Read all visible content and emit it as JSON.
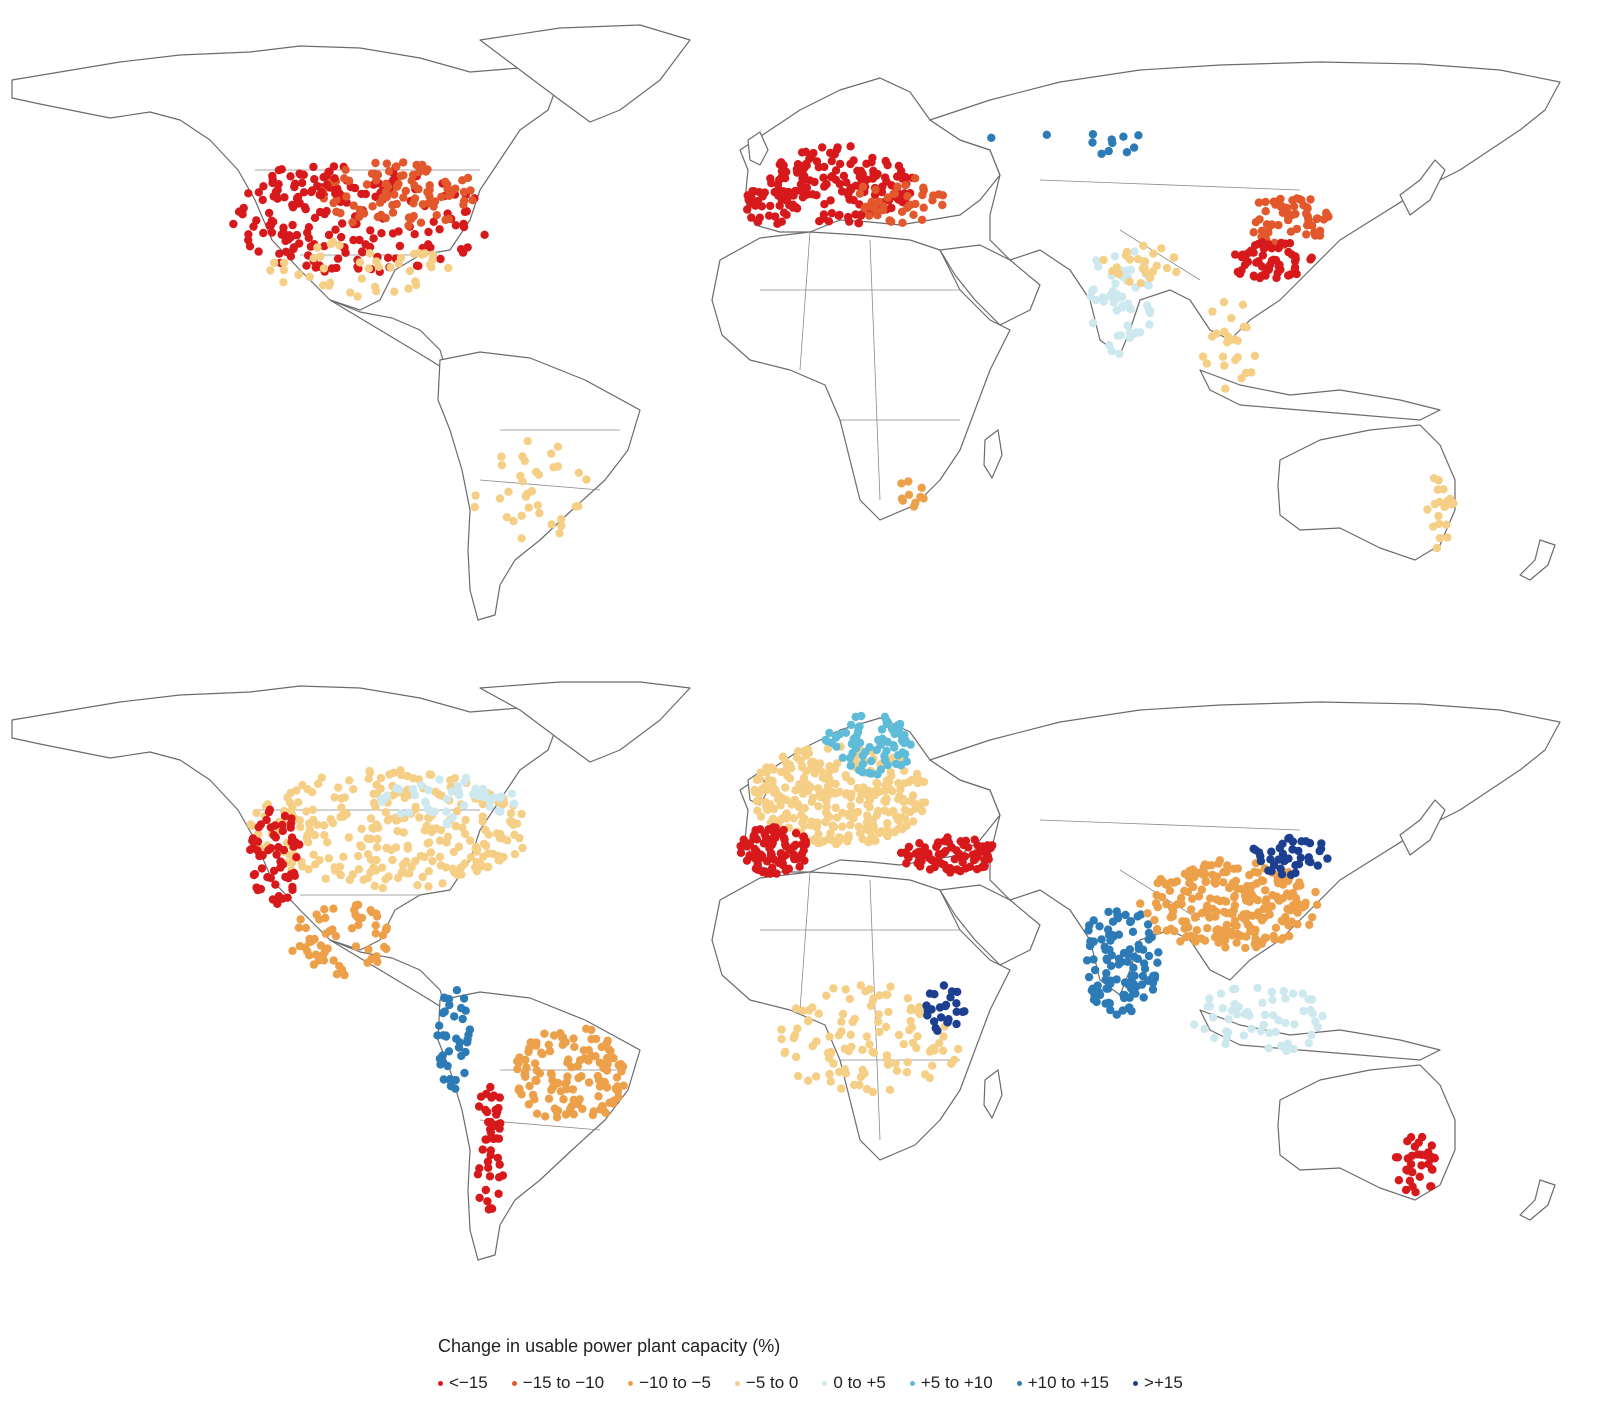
{
  "legend": {
    "title": "Change in usable power plant capacity (%)",
    "classes": [
      {
        "label": "<−15",
        "color": "#d7191c"
      },
      {
        "label": "−15 to −10",
        "color": "#e2572b"
      },
      {
        "label": "−10 to −5",
        "color": "#eda04a"
      },
      {
        "label": "−5 to 0",
        "color": "#f6cf86"
      },
      {
        "label": "0 to +5",
        "color": "#cde9ef"
      },
      {
        "label": "+5 to +10",
        "color": "#5fbcd9"
      },
      {
        "label": "+10 to +15",
        "color": "#2c7bb6"
      },
      {
        "label": ">+15",
        "color": "#1d3f8f"
      }
    ]
  },
  "maps": [
    {
      "panel": "top",
      "clusters": [
        {
          "region": "eastern-usa",
          "class": 0
        },
        {
          "region": "central-usa",
          "class": 1
        },
        {
          "region": "western-usa",
          "class": 0
        },
        {
          "region": "gulf-usa",
          "class": 3
        },
        {
          "region": "europe",
          "class": 0
        },
        {
          "region": "iberia",
          "class": 0
        },
        {
          "region": "eastern-europe",
          "class": 1
        },
        {
          "region": "russia",
          "class": 6
        },
        {
          "region": "india",
          "class": 4
        },
        {
          "region": "india-north",
          "class": 3
        },
        {
          "region": "east-china",
          "class": 1
        },
        {
          "region": "south-china",
          "class": 0
        },
        {
          "region": "southeast-asia",
          "class": 3
        },
        {
          "region": "south-america",
          "class": 3
        },
        {
          "region": "southern-africa",
          "class": 2
        },
        {
          "region": "east-australia",
          "class": 3
        }
      ]
    },
    {
      "panel": "bottom",
      "clusters": [
        {
          "region": "usa",
          "class": 3
        },
        {
          "region": "west-coast-usa",
          "class": 0
        },
        {
          "region": "northeast-usa",
          "class": 4
        },
        {
          "region": "mexico",
          "class": 2
        },
        {
          "region": "europe",
          "class": 3
        },
        {
          "region": "iberia",
          "class": 0
        },
        {
          "region": "scandinavia",
          "class": 5
        },
        {
          "region": "turkey",
          "class": 0
        },
        {
          "region": "india",
          "class": 6
        },
        {
          "region": "china",
          "class": 2
        },
        {
          "region": "north-china",
          "class": 7
        },
        {
          "region": "andes",
          "class": 6
        },
        {
          "region": "chile",
          "class": 0
        },
        {
          "region": "brazil",
          "class": 2
        },
        {
          "region": "africa",
          "class": 3
        },
        {
          "region": "east-africa",
          "class": 7
        },
        {
          "region": "southeast-asia",
          "class": 4
        },
        {
          "region": "east-australia",
          "class": 0
        }
      ]
    }
  ]
}
